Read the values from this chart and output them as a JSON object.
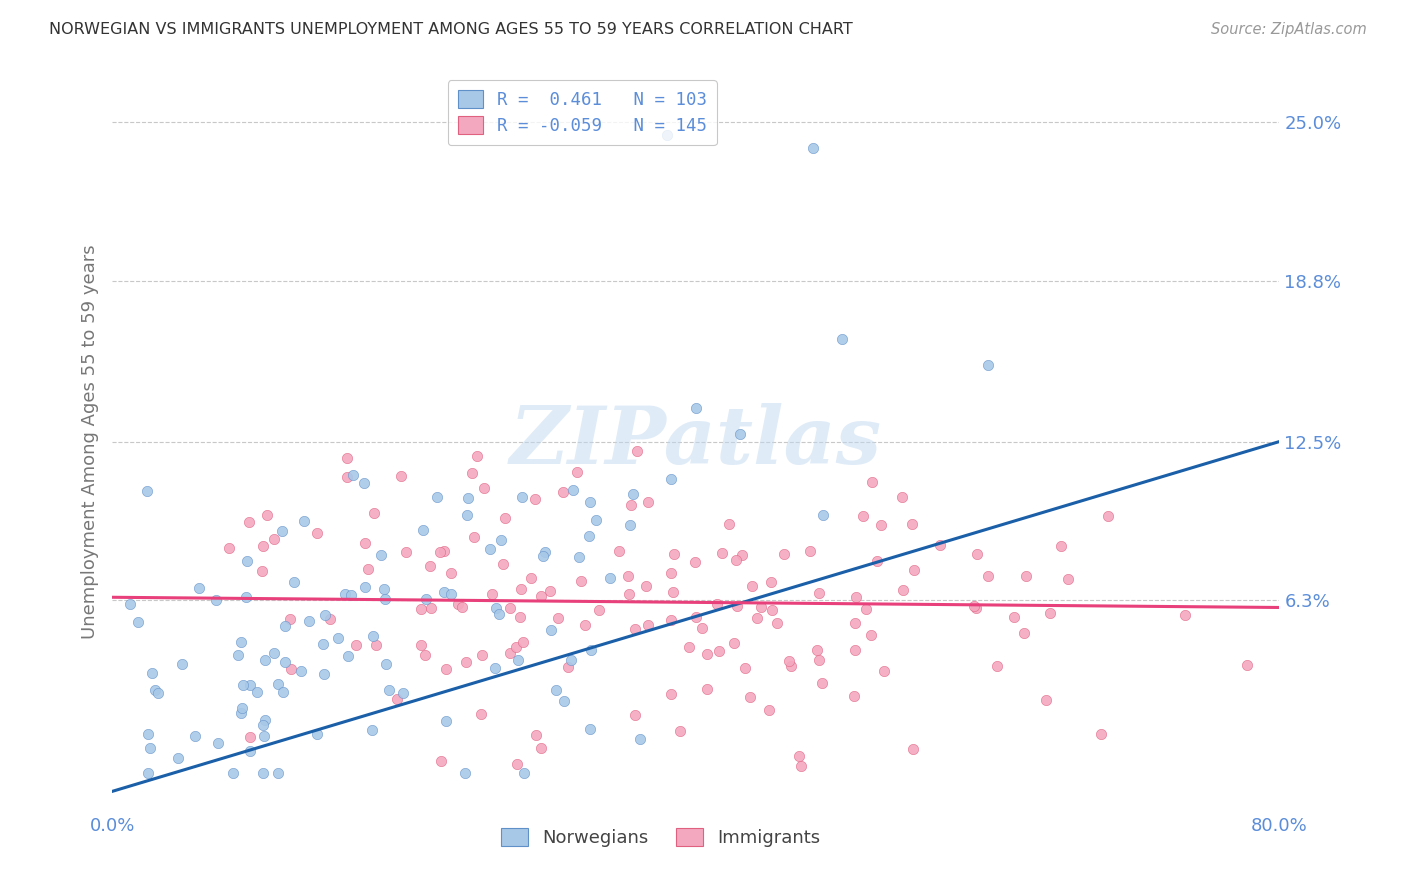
{
  "title": "NORWEGIAN VS IMMIGRANTS UNEMPLOYMENT AMONG AGES 55 TO 59 YEARS CORRELATION CHART",
  "source": "Source: ZipAtlas.com",
  "ylabel": "Unemployment Among Ages 55 to 59 years",
  "xlim": [
    0.0,
    0.8
  ],
  "ylim": [
    -0.02,
    0.27
  ],
  "xticks": [
    0.0,
    0.1,
    0.2,
    0.3,
    0.4,
    0.5,
    0.6,
    0.7,
    0.8
  ],
  "xticklabels": [
    "0.0%",
    "",
    "",
    "",
    "",
    "",
    "",
    "",
    "80.0%"
  ],
  "ytick_positions": [
    0.063,
    0.125,
    0.188,
    0.25
  ],
  "ytick_labels": [
    "6.3%",
    "12.5%",
    "18.8%",
    "25.0%"
  ],
  "norwegian_color": "#a8c8e8",
  "immigrant_color": "#f4a8c0",
  "norwegian_edge_color": "#6090c8",
  "immigrant_edge_color": "#e06080",
  "norwegian_line_color": "#1a5fa8",
  "immigrant_line_color": "#e8407a",
  "legend_R_norwegian": "0.461",
  "legend_N_norwegian": "103",
  "legend_R_immigrant": "-0.059",
  "legend_N_immigrant": "145",
  "watermark": "ZIPatlas",
  "background_color": "#ffffff",
  "grid_color": "#c8c8c8",
  "title_color": "#333333",
  "axis_label_color": "#777777",
  "tick_color": "#5b8dd9",
  "source_color": "#999999",
  "nor_line_x0": 0.0,
  "nor_line_y0": -0.012,
  "nor_line_x1": 0.8,
  "nor_line_y1": 0.125,
  "imm_line_x0": 0.0,
  "imm_line_y0": 0.064,
  "imm_line_x1": 0.8,
  "imm_line_y1": 0.06
}
